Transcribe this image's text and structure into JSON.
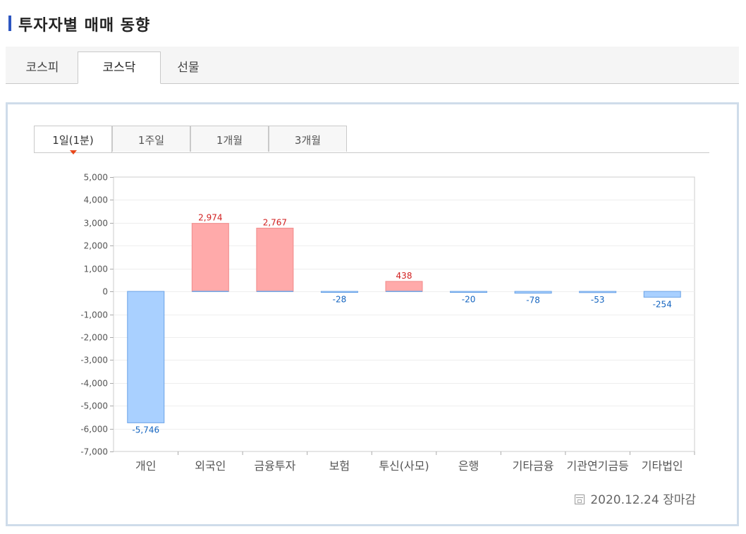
{
  "page": {
    "title": "투자자별 매매 동향"
  },
  "market_tabs": [
    {
      "label": "코스피",
      "active": false
    },
    {
      "label": "코스닥",
      "active": true
    },
    {
      "label": "선물",
      "active": false
    }
  ],
  "period_tabs": [
    {
      "label": "1일(1분)",
      "active": true
    },
    {
      "label": "1주일",
      "active": false
    },
    {
      "label": "1개월",
      "active": false
    },
    {
      "label": "3개월",
      "active": false
    }
  ],
  "footer": {
    "date_text": "2020.12.24 장마감"
  },
  "colors": {
    "positive_fill": "#ffaaaa",
    "positive_stroke": "#f08b8b",
    "negative_fill": "#a9d0ff",
    "negative_stroke": "#6aa2e6",
    "positive_label": "#d11f1f",
    "negative_label": "#1565c0",
    "title_accent": "#2d56c1",
    "active_marker": "#e8471b"
  },
  "chart_data": {
    "type": "bar",
    "categories": [
      "개인",
      "외국인",
      "금융투자",
      "보험",
      "투신(사모)",
      "은행",
      "기타금융",
      "기관연기금등",
      "기타법인"
    ],
    "values": [
      -5746,
      2974,
      2767,
      -28,
      438,
      -20,
      -78,
      -53,
      -254
    ],
    "data_labels": [
      "-5,746",
      "2,974",
      "2,767",
      "-28",
      "438",
      "-20",
      "-78",
      "-53",
      "-254"
    ],
    "ylim": [
      -7000,
      5000
    ],
    "yticks": [
      5000,
      4000,
      3000,
      2000,
      1000,
      0,
      -1000,
      -2000,
      -3000,
      -4000,
      -5000,
      -6000,
      -7000
    ],
    "ytick_labels": [
      "5,000",
      "4,000",
      "3,000",
      "2,000",
      "1,000",
      "0",
      "-1,000",
      "-2,000",
      "-3,000",
      "-4,000",
      "-5,000",
      "-6,000",
      "-7,000"
    ],
    "grid": true,
    "title": "",
    "xlabel": "",
    "ylabel": ""
  }
}
